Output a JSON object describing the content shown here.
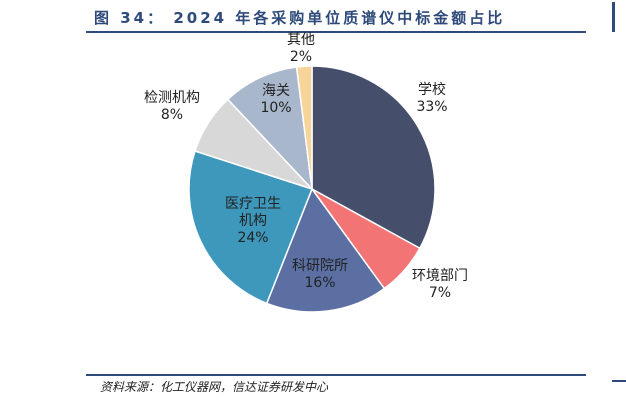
{
  "figure": {
    "title": "图  34：  2024 年各采购单位质谱仪中标金额占比",
    "source": "资料来源：化工仪器网，信达证券研发中心"
  },
  "chart_data": {
    "type": "pie",
    "slices": [
      {
        "label": "学校",
        "label_lines": [
          "学校"
        ],
        "value": 33,
        "value_text": "33%",
        "color": "#454e6b",
        "label_color": "#222222"
      },
      {
        "label": "环境部门",
        "label_lines": [
          "环境部门"
        ],
        "value": 7,
        "value_text": "7%",
        "color": "#f27474",
        "label_color": "#222222"
      },
      {
        "label": "科研院所",
        "label_lines": [
          "科研院所"
        ],
        "value": 16,
        "value_text": "16%",
        "color": "#5b6fa3",
        "label_color": "#ffffff"
      },
      {
        "label": "医疗卫生机构",
        "label_lines": [
          "医疗卫生",
          "机构"
        ],
        "value": 24,
        "value_text": "24%",
        "color": "#3d98bb",
        "label_color": "#222222"
      },
      {
        "label": "检测机构",
        "label_lines": [
          "检测机构"
        ],
        "value": 8,
        "value_text": "8%",
        "color": "#d8d8d8",
        "label_color": "#222222"
      },
      {
        "label": "海关",
        "label_lines": [
          "海关"
        ],
        "value": 10,
        "value_text": "10%",
        "color": "#a9b7cc",
        "label_color": "#222222"
      },
      {
        "label": "其他",
        "label_lines": [
          "其他"
        ],
        "value": 2,
        "value_text": "2%",
        "color": "#f7d59a",
        "label_color": "#222222"
      }
    ]
  }
}
